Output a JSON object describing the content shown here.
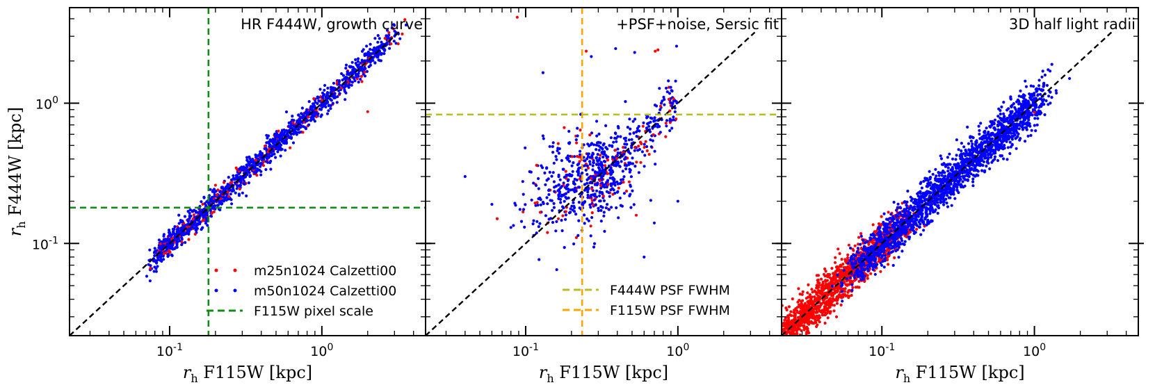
{
  "chart_data": {
    "type": "scatter",
    "xscale": "log",
    "yscale": "log",
    "xlim": [
      0.022,
      4.8
    ],
    "ylim": [
      0.022,
      4.8
    ],
    "xlabel_math": "r",
    "xlabel_sub": "h",
    "xlabel_text": " F115W [kpc]",
    "ylabel_math": "r",
    "ylabel_sub": "h",
    "ylabel_text": " F444W [kpc]",
    "xticks": [
      {
        "value": 0.1,
        "base": "10",
        "exp": "-1"
      },
      {
        "value": 1.0,
        "base": "10",
        "exp": "0"
      }
    ],
    "yticks": [
      {
        "value": 0.1,
        "base": "10",
        "exp": "-1"
      },
      {
        "value": 1.0,
        "base": "10",
        "exp": "0"
      }
    ],
    "series_colors": {
      "m25": "#ff0000",
      "m50": "#0000ff"
    },
    "panels": [
      {
        "title": "HR F444W, growth curve",
        "scatter_sigma": 0.045,
        "outliers": [
          {
            "x": 2.0,
            "y": 0.87,
            "s": "m25"
          },
          {
            "x": 2.6,
            "y": 2.9,
            "s": "m25"
          },
          {
            "x": 0.75,
            "y": 0.62,
            "s": "m25"
          },
          {
            "x": 0.2,
            "y": 0.26,
            "s": "m25"
          }
        ],
        "lines": [
          {
            "orientation": "vertical",
            "value": 0.18,
            "color": "#138a13"
          },
          {
            "orientation": "horizontal",
            "value": 0.18,
            "color": "#138a13"
          }
        ],
        "legend": [
          {
            "kind": "marker",
            "color": "#ff0000",
            "label": "m25n1024 Calzetti00"
          },
          {
            "kind": "marker",
            "color": "#0000ff",
            "label": "m50n1024 Calzetti00"
          },
          {
            "kind": "line",
            "color": "#138a13",
            "label": "F115W pixel scale"
          }
        ]
      },
      {
        "title": "+PSF+noise, Sersic fit",
        "scatter_sigma": 0.16,
        "outliers": [
          {
            "x": 0.088,
            "y": 4.1,
            "s": "m25"
          },
          {
            "x": 0.13,
            "y": 1.65,
            "s": "m50"
          },
          {
            "x": 0.39,
            "y": 2.45,
            "s": "m50"
          },
          {
            "x": 0.52,
            "y": 2.3,
            "s": "m50"
          },
          {
            "x": 0.71,
            "y": 2.35,
            "s": "m25"
          },
          {
            "x": 0.74,
            "y": 2.4,
            "s": "m25"
          },
          {
            "x": 0.98,
            "y": 2.55,
            "s": "m50"
          },
          {
            "x": 0.25,
            "y": 2.35,
            "s": "m25"
          },
          {
            "x": 0.27,
            "y": 2.15,
            "s": "m50"
          },
          {
            "x": 0.04,
            "y": 0.3,
            "s": "m50"
          },
          {
            "x": 0.06,
            "y": 0.19,
            "s": "m50"
          },
          {
            "x": 0.08,
            "y": 0.13,
            "s": "m50"
          },
          {
            "x": 0.065,
            "y": 0.15,
            "s": "m25"
          },
          {
            "x": 1.0,
            "y": 0.2,
            "s": "m50"
          },
          {
            "x": 0.7,
            "y": 0.14,
            "s": "m50"
          },
          {
            "x": 0.16,
            "y": 0.065,
            "s": "m50"
          },
          {
            "x": 0.6,
            "y": 0.08,
            "s": "m50"
          }
        ],
        "lines": [
          {
            "orientation": "vertical",
            "value": 0.235,
            "color": "#ffa500"
          },
          {
            "orientation": "horizontal",
            "value": 0.83,
            "color": "#bcbd22"
          }
        ],
        "legend": [
          {
            "kind": "line",
            "color": "#bcbd22",
            "label": "F444W PSF FWHM"
          },
          {
            "kind": "line",
            "color": "#ffa500",
            "label": "F115W PSF FWHM"
          }
        ]
      },
      {
        "title": "3D half light radii",
        "scatter_sigma": 0.075,
        "outliers": [
          {
            "x": 1.0,
            "y": 0.86,
            "s": "m25"
          },
          {
            "x": 1.7,
            "y": 1.5,
            "s": "m50"
          },
          {
            "x": 1.3,
            "y": 1.1,
            "s": "m50"
          }
        ],
        "lines": [],
        "legend": []
      }
    ]
  }
}
